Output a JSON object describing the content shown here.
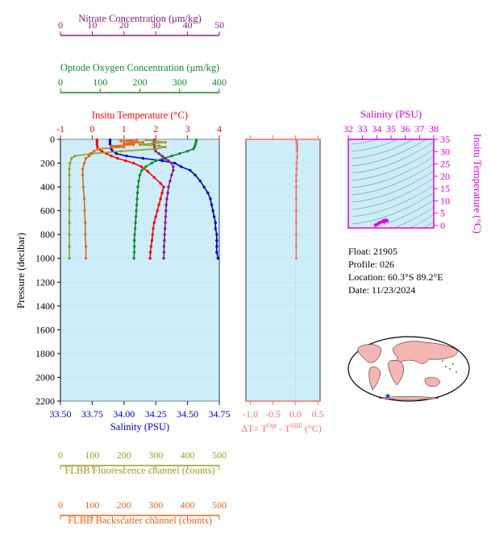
{
  "colors": {
    "nitrate": "#8b1a8b",
    "oxygen": "#0f8a2a",
    "temperature": "#ff0000",
    "salinity": "#0000cd",
    "fluorescence": "#9a9a2a",
    "backscatter": "#e0671a",
    "delta": "#ff6f6f",
    "ts_axis": "#e000e0",
    "panel_bg": "#cdeef8"
  },
  "icons": {
    "location_marker": "star-icon"
  },
  "float_info": {
    "float": "Float:  21905",
    "profile": "Profile:  026",
    "location": "Location:  60.3°S  89.2°E",
    "date": "Date:  11/23/2024"
  },
  "chart_data": [
    {
      "type": "line",
      "name": "profile-panel",
      "ylabel": "Pressure (decibar)",
      "y_ticks": [
        0,
        200,
        400,
        600,
        800,
        1000,
        1200,
        1400,
        1600,
        1800,
        2000,
        2200
      ],
      "ylim": [
        2200,
        0
      ],
      "axes": {
        "nitrate": {
          "label": "Nitrate Concentration (μm/kg)",
          "ticks": [
            0,
            10,
            20,
            30,
            40,
            50
          ],
          "range": [
            0,
            50
          ]
        },
        "oxygen": {
          "label": "Optode Oxygen Concentration (μm/kg)",
          "ticks": [
            0,
            100,
            200,
            300,
            400
          ],
          "range": [
            0,
            400
          ]
        },
        "temperature": {
          "label": "Insitu Temperature (°C)",
          "ticks": [
            -1,
            0,
            1,
            2,
            3,
            4
          ],
          "range": [
            -1,
            4
          ]
        },
        "salinity": {
          "label": "Salinity (PSU)",
          "ticks": [
            "33.50",
            "33.75",
            "34.00",
            "34.25",
            "34.50",
            "34.75"
          ],
          "range": [
            33.5,
            34.75
          ]
        },
        "fluorescence": {
          "label": "FLBB Fluorescence channel (counts)",
          "ticks": [
            0,
            100,
            200,
            300,
            400,
            500
          ],
          "range": [
            0,
            500
          ]
        },
        "backscatter": {
          "label": "FLBB Backscatter channel (counts)",
          "ticks": [
            0,
            100,
            200,
            300,
            400,
            500
          ],
          "range": [
            0,
            500
          ]
        }
      },
      "series": [
        {
          "key": "salinity",
          "axis": "salinity",
          "values": [
            [
              33.89,
              5
            ],
            [
              33.89,
              20
            ],
            [
              33.89,
              40
            ],
            [
              33.9,
              60
            ],
            [
              33.9,
              80
            ],
            [
              33.91,
              100
            ],
            [
              33.94,
              120
            ],
            [
              34.02,
              140
            ],
            [
              34.15,
              160
            ],
            [
              34.3,
              180
            ],
            [
              34.4,
              200
            ],
            [
              34.45,
              230
            ],
            [
              34.52,
              260
            ],
            [
              34.56,
              300
            ],
            [
              34.6,
              350
            ],
            [
              34.63,
              400
            ],
            [
              34.66,
              450
            ],
            [
              34.68,
              500
            ],
            [
              34.69,
              550
            ],
            [
              34.7,
              600
            ],
            [
              34.71,
              650
            ],
            [
              34.72,
              700
            ],
            [
              34.72,
              750
            ],
            [
              34.73,
              800
            ],
            [
              34.73,
              850
            ],
            [
              34.73,
              900
            ],
            [
              34.73,
              950
            ],
            [
              34.74,
              1000
            ]
          ]
        },
        {
          "key": "temperature",
          "axis": "temperature",
          "values": [
            [
              0.15,
              5
            ],
            [
              0.15,
              20
            ],
            [
              0.15,
              40
            ],
            [
              0.16,
              60
            ],
            [
              0.18,
              80
            ],
            [
              0.3,
              100
            ],
            [
              0.45,
              120
            ],
            [
              0.6,
              140
            ],
            [
              0.8,
              160
            ],
            [
              1.05,
              180
            ],
            [
              1.3,
              200
            ],
            [
              1.55,
              230
            ],
            [
              1.75,
              270
            ],
            [
              1.95,
              320
            ],
            [
              2.15,
              370
            ],
            [
              2.25,
              400
            ],
            [
              2.2,
              450
            ],
            [
              2.15,
              500
            ],
            [
              2.1,
              550
            ],
            [
              2.05,
              600
            ],
            [
              2.0,
              650
            ],
            [
              1.95,
              700
            ],
            [
              1.92,
              750
            ],
            [
              1.9,
              800
            ],
            [
              1.88,
              850
            ],
            [
              1.85,
              900
            ],
            [
              1.83,
              950
            ],
            [
              1.82,
              1000
            ]
          ]
        },
        {
          "key": "oxygen",
          "axis": "oxygen",
          "values": [
            [
              342,
              5
            ],
            [
              342,
              20
            ],
            [
              340,
              40
            ],
            [
              338,
              60
            ],
            [
              335,
              80
            ],
            [
              320,
              100
            ],
            [
              300,
              120
            ],
            [
              280,
              140
            ],
            [
              260,
              160
            ],
            [
              240,
              180
            ],
            [
              230,
              200
            ],
            [
              215,
              230
            ],
            [
              205,
              260
            ],
            [
              200,
              300
            ],
            [
              197,
              350
            ],
            [
              195,
              400
            ],
            [
              194,
              450
            ],
            [
              193,
              500
            ],
            [
              192,
              550
            ],
            [
              191,
              600
            ],
            [
              190,
              650
            ],
            [
              189,
              700
            ],
            [
              188,
              750
            ],
            [
              187,
              800
            ],
            [
              186,
              850
            ],
            [
              186,
              900
            ],
            [
              186,
              950
            ],
            [
              185,
              1000
            ]
          ]
        },
        {
          "key": "nitrate",
          "axis": "nitrate",
          "values": [
            [
              29.5,
              5
            ],
            [
              29.5,
              20
            ],
            [
              29.5,
              40
            ],
            [
              29.6,
              60
            ],
            [
              29.6,
              80
            ],
            [
              30,
              100
            ],
            [
              31,
              120
            ],
            [
              32,
              140
            ],
            [
              33,
              160
            ],
            [
              34,
              180
            ],
            [
              35,
              200
            ],
            [
              35.5,
              230
            ],
            [
              35.5,
              260
            ],
            [
              35,
              300
            ],
            [
              34.5,
              350
            ],
            [
              34,
              400
            ],
            [
              33.8,
              450
            ],
            [
              33.5,
              500
            ],
            [
              33.3,
              550
            ],
            [
              33.2,
              600
            ],
            [
              33.1,
              650
            ],
            [
              33,
              700
            ],
            [
              32.9,
              750
            ],
            [
              32.8,
              800
            ],
            [
              32.7,
              850
            ],
            [
              32.6,
              900
            ],
            [
              32.6,
              950
            ],
            [
              32.5,
              1000
            ]
          ]
        },
        {
          "key": "fluorescence",
          "axis": "fluorescence",
          "values": [
            [
              270,
              5
            ],
            [
              300,
              15
            ],
            [
              330,
              25
            ],
            [
              290,
              35
            ],
            [
              250,
              45
            ],
            [
              310,
              55
            ],
            [
              330,
              65
            ],
            [
              300,
              80
            ],
            [
              190,
              100
            ],
            [
              100,
              120
            ],
            [
              45,
              140
            ],
            [
              35,
              160
            ],
            [
              30,
              200
            ],
            [
              28,
              250
            ],
            [
              28,
              300
            ],
            [
              28,
              400
            ],
            [
              28,
              500
            ],
            [
              28,
              600
            ],
            [
              28,
              700
            ],
            [
              28,
              800
            ],
            [
              28,
              900
            ],
            [
              28,
              1000
            ]
          ]
        },
        {
          "key": "backscatter",
          "axis": "backscatter",
          "values": [
            [
              240,
              5
            ],
            [
              190,
              15
            ],
            [
              260,
              25
            ],
            [
              200,
              35
            ],
            [
              230,
              45
            ],
            [
              160,
              55
            ],
            [
              200,
              65
            ],
            [
              120,
              80
            ],
            [
              105,
              100
            ],
            [
              95,
              120
            ],
            [
              90,
              140
            ],
            [
              80,
              160
            ],
            [
              75,
              200
            ],
            [
              70,
              250
            ],
            [
              70,
              300
            ],
            [
              72,
              400
            ],
            [
              75,
              500
            ],
            [
              76,
              600
            ],
            [
              78,
              700
            ],
            [
              78,
              800
            ],
            [
              80,
              900
            ],
            [
              80,
              1000
            ]
          ]
        }
      ]
    },
    {
      "type": "line",
      "name": "delta-panel",
      "xlabel_parts": [
        "ΔT= T",
        "Opt",
        " - T",
        "SBE",
        " (°C)"
      ],
      "x_ticks": [
        "-1.0",
        "-0.5",
        "0.0",
        "0.5"
      ],
      "xlim": [
        -1.1,
        0.55
      ],
      "ylim": [
        2200,
        0
      ],
      "series": [
        {
          "key": "delta",
          "values": [
            [
              0.03,
              5
            ],
            [
              0.03,
              20
            ],
            [
              0.04,
              40
            ],
            [
              0.04,
              60
            ],
            [
              0.04,
              80
            ],
            [
              0.04,
              100
            ],
            [
              0.04,
              150
            ],
            [
              0.03,
              200
            ],
            [
              0.03,
              250
            ],
            [
              0.02,
              300
            ],
            [
              0.02,
              350
            ],
            [
              0.02,
              400
            ],
            [
              0.02,
              500
            ],
            [
              0.02,
              600
            ],
            [
              0.02,
              700
            ],
            [
              0.02,
              800
            ],
            [
              0.02,
              900
            ],
            [
              0.02,
              1000
            ]
          ]
        }
      ]
    },
    {
      "type": "scatter",
      "name": "ts-diagram",
      "xlabel": "Salinity (PSU)",
      "ylabel": "Insitu Temperature (°C)",
      "x_ticks": [
        32,
        33,
        34,
        35,
        36,
        37,
        38
      ],
      "y_ticks": [
        0,
        5,
        10,
        15,
        20,
        25,
        30,
        35
      ],
      "xlim": [
        32,
        38
      ],
      "ylim": [
        -1,
        35
      ],
      "series": [
        {
          "key": "ts_points",
          "values": [
            [
              33.9,
              0.2
            ],
            [
              34.0,
              0.4
            ],
            [
              34.1,
              0.8
            ],
            [
              34.2,
              1.1
            ],
            [
              34.3,
              1.4
            ],
            [
              34.4,
              1.6
            ],
            [
              34.45,
              1.8
            ],
            [
              34.5,
              2.0
            ],
            [
              34.55,
              2.1
            ],
            [
              34.6,
              2.2
            ],
            [
              34.65,
              2.15
            ],
            [
              34.7,
              2.05
            ],
            [
              34.72,
              1.95
            ],
            [
              34.73,
              1.85
            ],
            [
              34.5,
              1.4
            ],
            [
              34.55,
              1.7
            ],
            [
              34.6,
              1.9
            ]
          ]
        }
      ]
    }
  ]
}
